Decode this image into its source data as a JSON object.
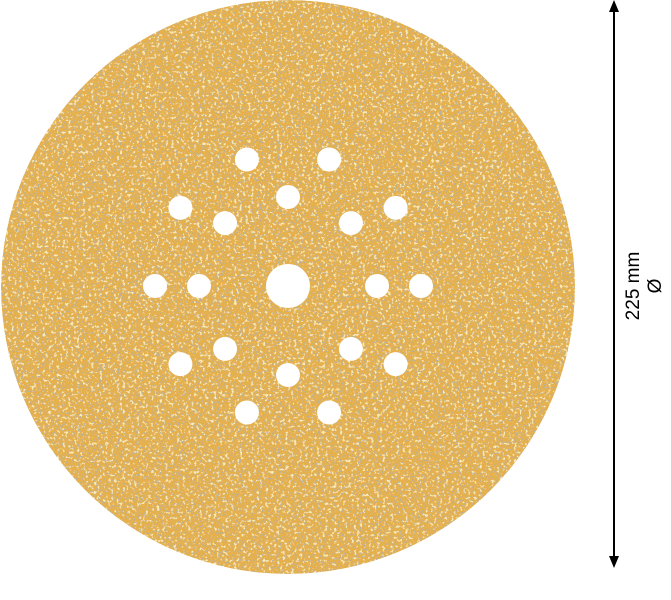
{
  "product": {
    "name": "sanding-disc",
    "colors": {
      "base": "#e6b04c",
      "grit_dark": "#7d7358",
      "grit_light": "#f6d57a",
      "holes": "#ffffff"
    },
    "hole_count": 19
  },
  "dimension": {
    "value": "225 mm",
    "symbol": "Ø"
  }
}
